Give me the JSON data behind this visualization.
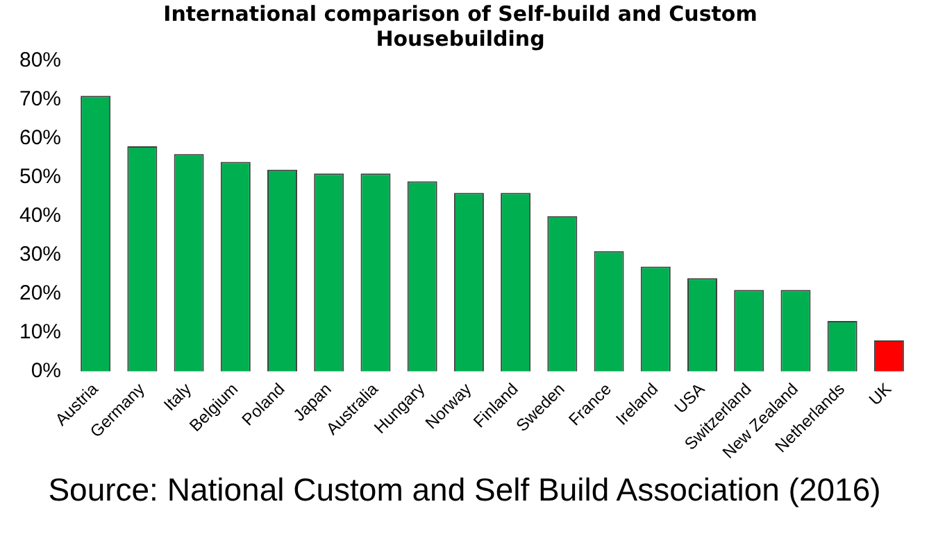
{
  "chart_data": {
    "type": "bar",
    "title": "International comparison of Self-build and Custom Housebuilding",
    "categories": [
      "Austria",
      "Germany",
      "Italy",
      "Belgium",
      "Poland",
      "Japan",
      "Australia",
      "Hungary",
      "Norway",
      "Finland",
      "Sweden",
      "France",
      "Ireland",
      "USA",
      "Switzerland",
      "New Zealand",
      "Netherlands",
      "UK"
    ],
    "values": [
      71,
      58,
      56,
      54,
      52,
      51,
      51,
      49,
      46,
      46,
      40,
      31,
      27,
      24,
      21,
      21,
      13,
      8
    ],
    "colors": [
      "#00b050",
      "#00b050",
      "#00b050",
      "#00b050",
      "#00b050",
      "#00b050",
      "#00b050",
      "#00b050",
      "#00b050",
      "#00b050",
      "#00b050",
      "#00b050",
      "#00b050",
      "#00b050",
      "#00b050",
      "#00b050",
      "#00b050",
      "#ff0000"
    ],
    "ylim": [
      0,
      80
    ],
    "yticks": [
      {
        "value": 0,
        "label": "0%"
      },
      {
        "value": 10,
        "label": "10%"
      },
      {
        "value": 20,
        "label": "20%"
      },
      {
        "value": 30,
        "label": "30%"
      },
      {
        "value": 40,
        "label": "40%"
      },
      {
        "value": 50,
        "label": "50%"
      },
      {
        "value": 60,
        "label": "60%"
      },
      {
        "value": 70,
        "label": "70%"
      },
      {
        "value": 80,
        "label": "80%"
      }
    ],
    "grid": false,
    "legend": false,
    "annotations": [
      "Source: National Custom and Self Build Association (2016)"
    ]
  }
}
